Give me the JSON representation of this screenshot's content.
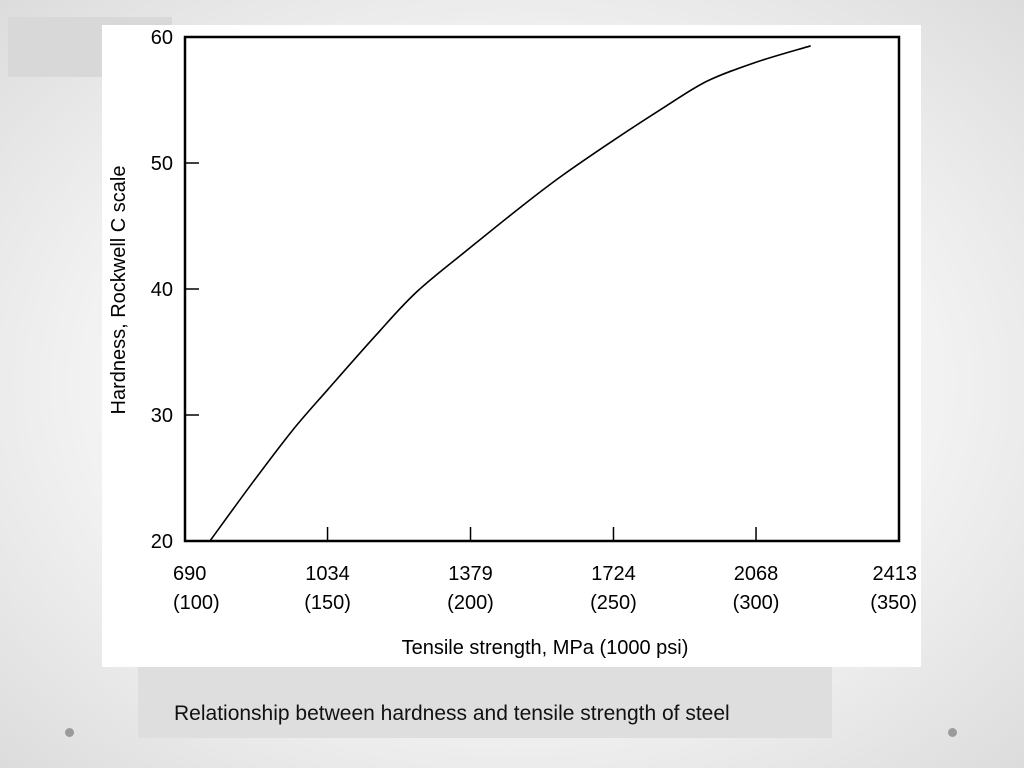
{
  "caption": "Relationship between hardness and tensile strength of steel",
  "chart_data": {
    "type": "line",
    "title": "",
    "xlabel": "Tensile strength, MPa (1000 psi)",
    "ylabel": "Hardness, Rockwell C scale",
    "xlim": [
      690,
      2413
    ],
    "ylim": [
      20,
      60
    ],
    "x_ticks": [
      {
        "value": 690,
        "label": "690",
        "sub": "(100)"
      },
      {
        "value": 1034,
        "label": "1034",
        "sub": "(150)"
      },
      {
        "value": 1379,
        "label": "1379",
        "sub": "(200)"
      },
      {
        "value": 1724,
        "label": "1724",
        "sub": "(250)"
      },
      {
        "value": 2068,
        "label": "2068",
        "sub": "(300)"
      },
      {
        "value": 2413,
        "label": "2413",
        "sub": "(350)"
      }
    ],
    "y_ticks": [
      20,
      30,
      40,
      50,
      60
    ],
    "grid": false,
    "series": [
      {
        "x": [
          750,
          850,
          950,
          1034,
          1150,
          1250,
          1379,
          1500,
          1600,
          1724,
          1850,
          1950,
          2068,
          2200
        ],
        "y": [
          20.0,
          24.5,
          28.8,
          32.0,
          36.3,
          39.8,
          43.3,
          46.5,
          49.0,
          51.8,
          54.5,
          56.5,
          58.0,
          59.3
        ]
      }
    ]
  },
  "colors": {
    "background": "#efefef",
    "panel": "#ffffff",
    "caption_box": "#dedede",
    "line": "#000000"
  }
}
